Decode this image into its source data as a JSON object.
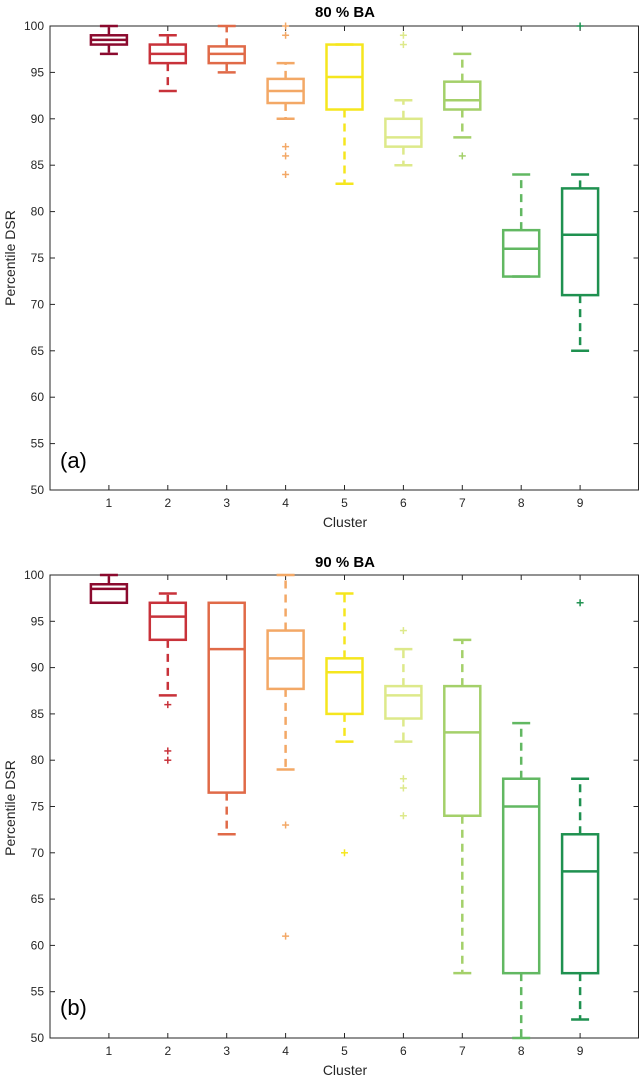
{
  "chart_data": [
    {
      "type": "box",
      "title": "80 % BA",
      "panel_label": "(a)",
      "xlabel": "Cluster",
      "ylabel": "Percentile DSR",
      "ylim": [
        50,
        100
      ],
      "yticks": [
        "50",
        "55",
        "60",
        "65",
        "70",
        "75",
        "80",
        "85",
        "90",
        "95",
        "100"
      ],
      "categories": [
        "1",
        "2",
        "3",
        "4",
        "5",
        "6",
        "7",
        "8",
        "9"
      ],
      "colors": [
        "#8b0a2e",
        "#c8323a",
        "#e06a48",
        "#f3a866",
        "#f5e61e",
        "#dde98a",
        "#a4d06a",
        "#62b862",
        "#1f9150"
      ],
      "boxes": [
        {
          "cluster": "1",
          "q1": 98,
          "median": 98.5,
          "q3": 99,
          "whisker_low": 97,
          "whisker_high": 100,
          "outliers": []
        },
        {
          "cluster": "2",
          "q1": 96,
          "median": 97,
          "q3": 98,
          "whisker_low": 93,
          "whisker_high": 99,
          "outliers": []
        },
        {
          "cluster": "3",
          "q1": 96,
          "median": 97,
          "q3": 97.8,
          "whisker_low": 95,
          "whisker_high": 100,
          "outliers": []
        },
        {
          "cluster": "4",
          "q1": 91.7,
          "median": 93,
          "q3": 94.3,
          "whisker_low": 90,
          "whisker_high": 96,
          "outliers": [
            84,
            86,
            87,
            99,
            100
          ]
        },
        {
          "cluster": "5",
          "q1": 91,
          "median": 94.5,
          "q3": 98,
          "whisker_low": 83,
          "whisker_high": 98,
          "outliers": []
        },
        {
          "cluster": "6",
          "q1": 87,
          "median": 88,
          "q3": 90,
          "whisker_low": 85,
          "whisker_high": 92,
          "outliers": [
            98,
            99
          ]
        },
        {
          "cluster": "7",
          "q1": 91,
          "median": 92,
          "q3": 94,
          "whisker_low": 88,
          "whisker_high": 97,
          "outliers": [
            86
          ]
        },
        {
          "cluster": "8",
          "q1": 73,
          "median": 76,
          "q3": 78,
          "whisker_low": 73,
          "whisker_high": 84,
          "outliers": []
        },
        {
          "cluster": "9",
          "q1": 71,
          "median": 77.5,
          "q3": 82.5,
          "whisker_low": 65,
          "whisker_high": 84,
          "outliers": [
            100
          ]
        }
      ]
    },
    {
      "type": "box",
      "title": "90 % BA",
      "panel_label": "(b)",
      "xlabel": "Cluster",
      "ylabel": "Percentile DSR",
      "ylim": [
        50,
        100
      ],
      "yticks": [
        "50",
        "55",
        "60",
        "65",
        "70",
        "75",
        "80",
        "85",
        "90",
        "95",
        "100"
      ],
      "categories": [
        "1",
        "2",
        "3",
        "4",
        "5",
        "6",
        "7",
        "8",
        "9"
      ],
      "colors": [
        "#8b0a2e",
        "#c8323a",
        "#e06a48",
        "#f3a866",
        "#f5e61e",
        "#dde98a",
        "#a4d06a",
        "#62b862",
        "#1f9150"
      ],
      "boxes": [
        {
          "cluster": "1",
          "q1": 97,
          "median": 98.5,
          "q3": 99,
          "whisker_low": 97,
          "whisker_high": 100,
          "outliers": []
        },
        {
          "cluster": "2",
          "q1": 93,
          "median": 95.5,
          "q3": 97,
          "whisker_low": 87,
          "whisker_high": 98,
          "outliers": [
            80,
            81,
            86
          ]
        },
        {
          "cluster": "3",
          "q1": 76.5,
          "median": 92,
          "q3": 97,
          "whisker_low": 72,
          "whisker_high": 97,
          "outliers": []
        },
        {
          "cluster": "4",
          "q1": 87.7,
          "median": 91,
          "q3": 94,
          "whisker_low": 79,
          "whisker_high": 100,
          "outliers": [
            61,
            73
          ]
        },
        {
          "cluster": "5",
          "q1": 85,
          "median": 89.5,
          "q3": 91,
          "whisker_low": 82,
          "whisker_high": 98,
          "outliers": [
            70
          ]
        },
        {
          "cluster": "6",
          "q1": 84.5,
          "median": 87,
          "q3": 88,
          "whisker_low": 82,
          "whisker_high": 92,
          "outliers": [
            74,
            77,
            78,
            94
          ]
        },
        {
          "cluster": "7",
          "q1": 74,
          "median": 83,
          "q3": 88,
          "whisker_low": 57,
          "whisker_high": 93,
          "outliers": []
        },
        {
          "cluster": "8",
          "q1": 57,
          "median": 75,
          "q3": 78,
          "whisker_low": 50,
          "whisker_high": 84,
          "outliers": []
        },
        {
          "cluster": "9",
          "q1": 57,
          "median": 68,
          "q3": 72,
          "whisker_low": 52,
          "whisker_high": 78,
          "outliers": [
            97
          ]
        }
      ]
    }
  ]
}
